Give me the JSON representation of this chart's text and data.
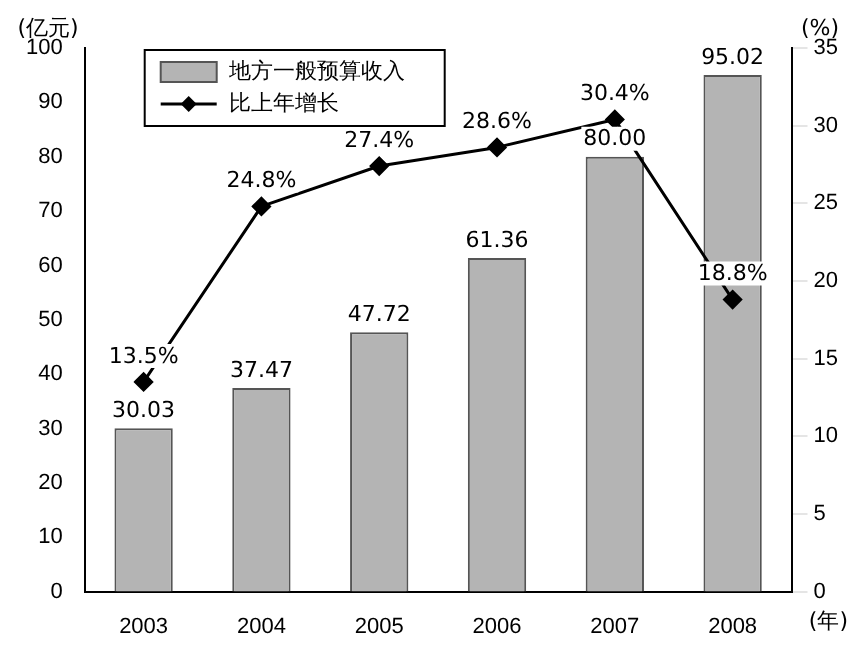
{
  "chart_data": {
    "type": "bar",
    "ylabel": "(亿元)",
    "y2label": "(%)",
    "xlabel": "(年)",
    "categories": [
      "2003",
      "2004",
      "2005",
      "2006",
      "2007",
      "2008"
    ],
    "series": [
      {
        "name": "地方一般预算收入",
        "color": "#b4b4b4",
        "values": [
          30.03,
          37.47,
          47.72,
          61.36,
          80.0,
          95.02
        ],
        "value_labels": [
          "30.03",
          "37.47",
          "47.72",
          "61.36",
          "80.00",
          "95.02"
        ]
      },
      {
        "name": "比上年增长",
        "type": "line",
        "axis": "y2",
        "color": "#000000",
        "values": [
          13.5,
          24.8,
          27.4,
          28.6,
          30.4,
          18.8
        ],
        "value_labels": [
          "13.5%",
          "24.8%",
          "27.4%",
          "28.6%",
          "30.4%",
          "18.8%"
        ]
      }
    ],
    "ylim": [
      0,
      100
    ],
    "yticks": [
      0,
      10,
      20,
      30,
      40,
      50,
      60,
      70,
      80,
      90,
      100
    ],
    "y2lim": [
      0,
      35
    ],
    "y2ticks": [
      0,
      5,
      10,
      15,
      20,
      25,
      30,
      35
    ],
    "grid": false,
    "legend": "top left",
    "marker": "diamond",
    "line_style": "solid"
  }
}
